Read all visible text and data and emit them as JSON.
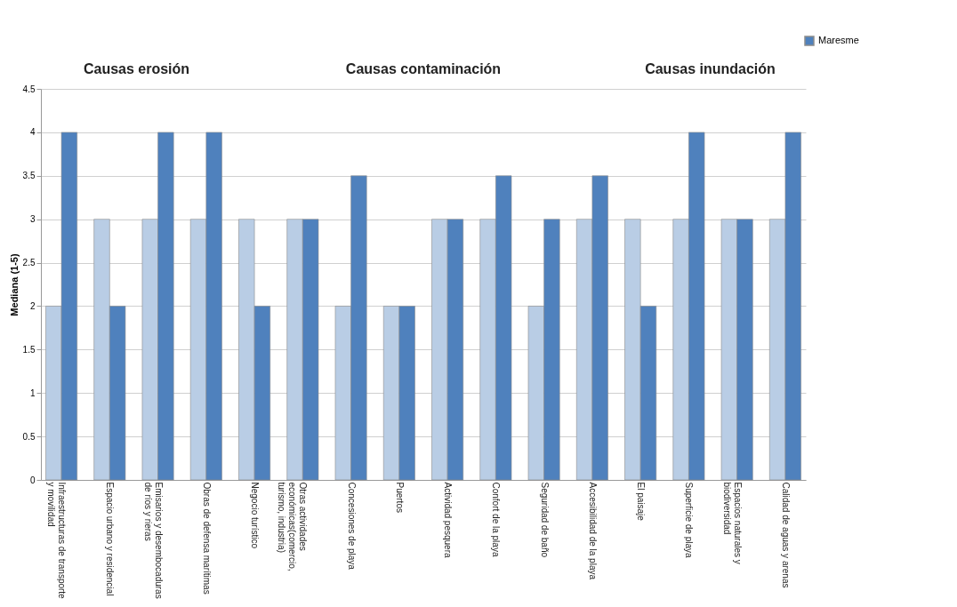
{
  "chart_data": {
    "type": "bar",
    "categories": [
      "Infraestructuras de transporte\ny movilidad",
      "Espacio urbano y residencial",
      "Emisarios y desembocaduras\nde ríos y rieras",
      "Obras de defensa marítimas",
      "Negocio turístico",
      "Otras actividades\neconómicas(comercio,\nturismo, industria)",
      "Concesiones de playa",
      "Puertos",
      "Actividad pesquera",
      "Confort de la playa",
      "Seguridad de baño",
      "Accesibilidad de la playa",
      "El paisaje",
      "Superficie de playa",
      "Espacios naturales y\nbiodiversidad",
      "Calidad de aguas y arenas"
    ],
    "series": [
      {
        "color": "#b9cde5",
        "values": [
          2,
          3,
          3,
          3,
          3,
          3,
          2,
          2,
          3,
          3,
          2,
          3,
          3,
          3,
          3,
          3
        ]
      },
      {
        "name": "Maresme",
        "color": "#4f81bd",
        "values": [
          4,
          2,
          4,
          4,
          2,
          3,
          3.5,
          2,
          3,
          3.5,
          3,
          3.5,
          2,
          4,
          3,
          4
        ]
      }
    ],
    "ylabel": "Mediana (1-5)",
    "ylim": [
      0,
      4.5
    ],
    "yticks": [
      0,
      0.5,
      1,
      1.5,
      2,
      2.5,
      3,
      3.5,
      4,
      4.5
    ],
    "grid": "y",
    "legend": "top right",
    "annotations": [
      "Causas erosión",
      "Causas contaminación",
      "Causas inundación"
    ]
  }
}
